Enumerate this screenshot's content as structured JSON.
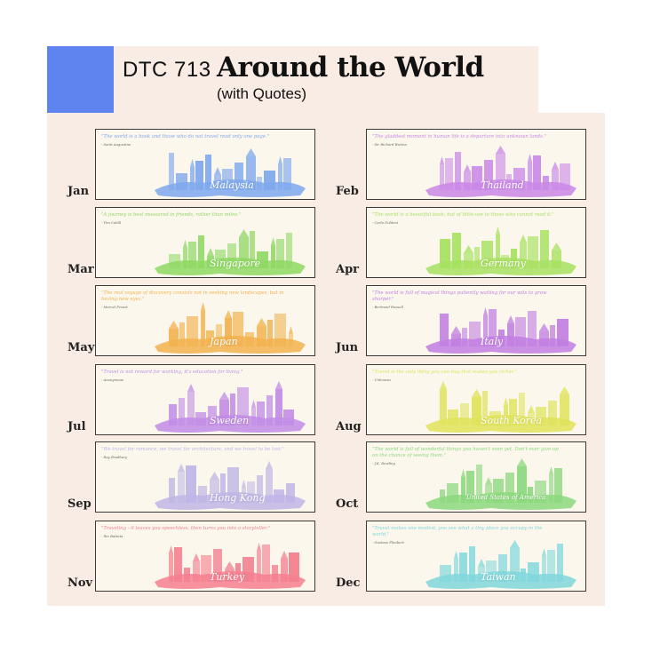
{
  "header": {
    "course": "DTC 713",
    "title": "Around the World",
    "subtitle": "(with Quotes)"
  },
  "colors": {
    "board": "#f8ece4",
    "accent_block": "#5f84f0",
    "card": "#fbf7ec"
  },
  "cards": [
    {
      "month": "Jan",
      "city": "Malaysia",
      "color": "#7fa8ee",
      "quote": "\"The world is a book and those who do not travel read only one page.\"",
      "author": "- Saint Augustine"
    },
    {
      "month": "Feb",
      "city": "Thailand",
      "color": "#c987e8",
      "quote": "\"The gladdest moment in human life is a departure into unknown lands.\"",
      "author": "- Sir Richard Burton"
    },
    {
      "month": "Mar",
      "city": "Singapore",
      "color": "#8ed863",
      "quote": "\"A journey is best measured in friends, rather than miles.\"",
      "author": "- Tim Cahill"
    },
    {
      "month": "Apr",
      "city": "Germany",
      "color": "#a7e160",
      "quote": "\"The world is a beautiful book, but of little use to those who cannot read it.\"",
      "author": "- Carlo Goldoni"
    },
    {
      "month": "May",
      "city": "Japan",
      "color": "#f2b24e",
      "quote": "\"The real voyage of discovery consists not in seeking new landscapes, but in having new eyes.\"",
      "author": "- Marcel Proust"
    },
    {
      "month": "Jun",
      "city": "Italy",
      "color": "#c17ee2",
      "quote": "\"The world is full of magical things patiently waiting for our wits to grow sharper.\"",
      "author": "- Bertrand Russell"
    },
    {
      "month": "Jul",
      "city": "Sweden",
      "color": "#c18ce6",
      "quote": "\"Travel is not reward for working, it's education for living.\"",
      "author": "- Anonymous"
    },
    {
      "month": "Aug",
      "city": "South Korea",
      "color": "#dfe35a",
      "quote": "\"Travel is the only thing you can buy that makes you richer.\"",
      "author": "- Unknown"
    },
    {
      "month": "Sep",
      "city": "Hong Kong",
      "color": "#bfb5e6",
      "quote": "\"We travel for romance, we travel for architecture, and we travel to be lost.\"",
      "author": "- Ray Bradbury"
    },
    {
      "month": "Oct",
      "city": "United States of America",
      "color": "#8cd87e",
      "quote": "\"The world is full of wonderful things you haven't seen yet. Don't ever give up on the chance of seeing them.\"",
      "author": "- J.K. Rowling"
    },
    {
      "month": "Nov",
      "city": "Turkey",
      "color": "#f47f8f",
      "quote": "\"Traveling - it leaves you speechless, then turns you into a storyteller.\"",
      "author": "- Ibn Battuta"
    },
    {
      "month": "Dec",
      "city": "Taiwan",
      "color": "#7fd7dc",
      "quote": "\"Travel makes one modest, you see what a tiny place you occupy in the world.\"",
      "author": "- Gustave Flaubert"
    }
  ]
}
